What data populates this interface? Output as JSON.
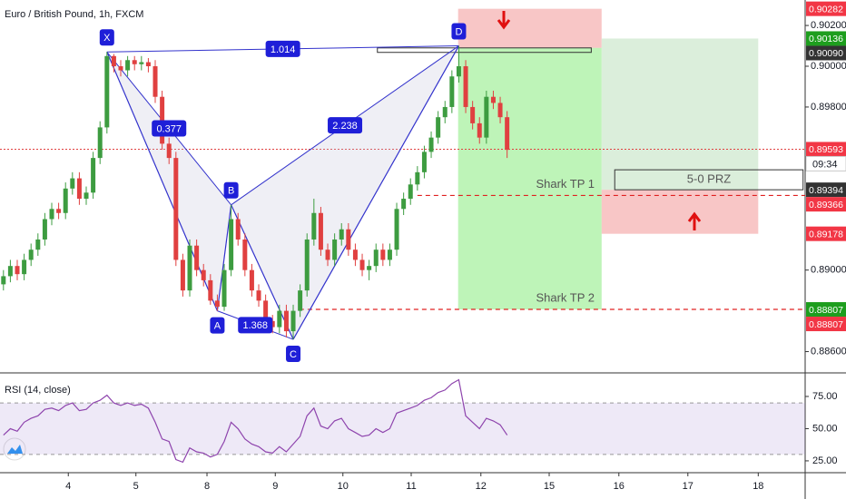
{
  "chart_data": {
    "type": "candlestick",
    "title": "Euro / British Pound, 1h, FXCM",
    "up_color": "#3d9c40",
    "down_color": "#e04040",
    "grid": false,
    "xlim": [
      -0.5,
      116.2
    ],
    "xticks": [
      {
        "value": 9.4,
        "label": "4"
      },
      {
        "value": 19.2,
        "label": "5"
      },
      {
        "value": 29.5,
        "label": "8"
      },
      {
        "value": 39.4,
        "label": "9"
      },
      {
        "value": 49.2,
        "label": "10"
      },
      {
        "value": 59.1,
        "label": "11"
      },
      {
        "value": 69.2,
        "label": "12"
      },
      {
        "value": 79.1,
        "label": "15"
      },
      {
        "value": 89.2,
        "label": "16"
      },
      {
        "value": 99.2,
        "label": "17"
      },
      {
        "value": 109.4,
        "label": "18"
      }
    ],
    "ylim": [
      0.885,
      0.90325
    ],
    "yticks": [
      {
        "value": 0.902,
        "label": "0.90200"
      },
      {
        "value": 0.9,
        "label": "0.90000"
      },
      {
        "value": 0.898,
        "label": "0.89800"
      },
      {
        "value": 0.89,
        "label": "0.89000"
      },
      {
        "value": 0.886,
        "label": "0.88600"
      }
    ],
    "candles": [
      [
        0.8893,
        0.89,
        0.889,
        0.8897
      ],
      [
        0.8897,
        0.8905,
        0.8894,
        0.8902
      ],
      [
        0.8902,
        0.8905,
        0.8895,
        0.8898
      ],
      [
        0.8898,
        0.8908,
        0.8895,
        0.8905
      ],
      [
        0.8905,
        0.8913,
        0.8902,
        0.891
      ],
      [
        0.891,
        0.8918,
        0.8907,
        0.8915
      ],
      [
        0.8915,
        0.8928,
        0.8912,
        0.8925
      ],
      [
        0.8925,
        0.8933,
        0.8922,
        0.893
      ],
      [
        0.893,
        0.8933,
        0.8925,
        0.8928
      ],
      [
        0.8928,
        0.8943,
        0.8925,
        0.894
      ],
      [
        0.894,
        0.8948,
        0.8937,
        0.8945
      ],
      [
        0.8945,
        0.8948,
        0.8932,
        0.8935
      ],
      [
        0.8935,
        0.8941,
        0.8932,
        0.8938
      ],
      [
        0.8938,
        0.8958,
        0.8935,
        0.8955
      ],
      [
        0.8955,
        0.8973,
        0.8952,
        0.897
      ],
      [
        0.897,
        0.9007,
        0.8967,
        0.9005
      ],
      [
        0.9005,
        0.9006,
        0.8997,
        0.9
      ],
      [
        0.9,
        0.9003,
        0.8995,
        0.8998
      ],
      [
        0.8998,
        0.9005,
        0.8995,
        0.9003
      ],
      [
        0.9003,
        0.9005,
        0.8998,
        0.9001
      ],
      [
        0.9001,
        0.9005,
        0.8998,
        0.9002
      ],
      [
        0.9002,
        0.9004,
        0.8997,
        0.9
      ],
      [
        0.9,
        0.9003,
        0.8982,
        0.8985
      ],
      [
        0.8985,
        0.8988,
        0.8959,
        0.8962
      ],
      [
        0.8962,
        0.8965,
        0.8952,
        0.8955
      ],
      [
        0.8955,
        0.8958,
        0.8902,
        0.8905
      ],
      [
        0.8905,
        0.8908,
        0.8887,
        0.889
      ],
      [
        0.889,
        0.8915,
        0.8887,
        0.8912
      ],
      [
        0.8912,
        0.8915,
        0.8897,
        0.89
      ],
      [
        0.89,
        0.8903,
        0.8892,
        0.8895
      ],
      [
        0.8895,
        0.8898,
        0.8883,
        0.8885
      ],
      [
        0.8885,
        0.8888,
        0.888,
        0.8882
      ],
      [
        0.8882,
        0.8903,
        0.888,
        0.89
      ],
      [
        0.89,
        0.8932,
        0.8897,
        0.8925
      ],
      [
        0.8925,
        0.8928,
        0.8912,
        0.8915
      ],
      [
        0.8915,
        0.8918,
        0.8897,
        0.89
      ],
      [
        0.89,
        0.8903,
        0.8887,
        0.889
      ],
      [
        0.889,
        0.8893,
        0.8882,
        0.8885
      ],
      [
        0.8885,
        0.8888,
        0.8872,
        0.8875
      ],
      [
        0.8875,
        0.8878,
        0.8869,
        0.8872
      ],
      [
        0.8872,
        0.8883,
        0.8869,
        0.888
      ],
      [
        0.888,
        0.8883,
        0.8867,
        0.887
      ],
      [
        0.887,
        0.8883,
        0.8866,
        0.888
      ],
      [
        0.888,
        0.8893,
        0.8877,
        0.889
      ],
      [
        0.889,
        0.8918,
        0.8887,
        0.8915
      ],
      [
        0.8915,
        0.8935,
        0.8912,
        0.8928
      ],
      [
        0.8928,
        0.8931,
        0.8907,
        0.891
      ],
      [
        0.891,
        0.8913,
        0.8902,
        0.8905
      ],
      [
        0.8905,
        0.8918,
        0.8902,
        0.8915
      ],
      [
        0.8915,
        0.8923,
        0.8912,
        0.892
      ],
      [
        0.892,
        0.8923,
        0.8907,
        0.891
      ],
      [
        0.891,
        0.8913,
        0.8902,
        0.8905
      ],
      [
        0.8905,
        0.8908,
        0.8897,
        0.89
      ],
      [
        0.89,
        0.8905,
        0.8895,
        0.8902
      ],
      [
        0.8902,
        0.8913,
        0.8899,
        0.891
      ],
      [
        0.891,
        0.8913,
        0.8902,
        0.8905
      ],
      [
        0.8905,
        0.8913,
        0.8902,
        0.891
      ],
      [
        0.891,
        0.8933,
        0.8907,
        0.893
      ],
      [
        0.893,
        0.8938,
        0.8927,
        0.8935
      ],
      [
        0.8935,
        0.8945,
        0.8932,
        0.8942
      ],
      [
        0.8942,
        0.8951,
        0.8939,
        0.8948
      ],
      [
        0.8948,
        0.8961,
        0.8945,
        0.8958
      ],
      [
        0.8958,
        0.8968,
        0.8955,
        0.8965
      ],
      [
        0.8965,
        0.8978,
        0.8962,
        0.8975
      ],
      [
        0.8975,
        0.8983,
        0.8972,
        0.898
      ],
      [
        0.898,
        0.8998,
        0.8977,
        0.8995
      ],
      [
        0.8995,
        0.901,
        0.8992,
        0.9
      ],
      [
        0.9,
        0.9003,
        0.8977,
        0.898
      ],
      [
        0.898,
        0.8983,
        0.8969,
        0.8972
      ],
      [
        0.8972,
        0.8975,
        0.8962,
        0.8965
      ],
      [
        0.8965,
        0.8988,
        0.8962,
        0.8985
      ],
      [
        0.8985,
        0.8988,
        0.8979,
        0.8982
      ],
      [
        0.8982,
        0.8985,
        0.8972,
        0.8975
      ],
      [
        0.8975,
        0.8978,
        0.8955,
        0.8959
      ]
    ],
    "pattern": {
      "points": [
        {
          "label": "X",
          "x": 15,
          "price": 0.9007
        },
        {
          "label": "A",
          "x": 31,
          "price": 0.888
        },
        {
          "label": "B",
          "x": 33,
          "price": 0.8932
        },
        {
          "label": "C",
          "x": 42,
          "price": 0.8866
        },
        {
          "label": "D",
          "x": 66,
          "price": 0.901
        }
      ],
      "ratios": [
        "1.014",
        "0.377",
        "2.238",
        "1.368"
      ]
    },
    "zones": [
      {
        "x": [
          65.9,
          86.7
        ],
        "price": [
          0.90282,
          0.9009
        ],
        "color": "#f6b3b3"
      },
      {
        "x": [
          65.9,
          86.7
        ],
        "price": [
          0.9009,
          0.88807
        ],
        "color": "#a8f0a0"
      },
      {
        "x": [
          86.7,
          109.4
        ],
        "price": [
          0.90136,
          0.89394
        ],
        "color": "#cfe8cf"
      },
      {
        "x": [
          86.7,
          109.4
        ],
        "price": [
          0.89394,
          0.89178
        ],
        "color": "#f6b3b3"
      }
    ],
    "outlines": [
      {
        "x": [
          54.2,
          85.2
        ],
        "price": [
          0.9009,
          0.90068
        ]
      },
      {
        "x": [
          88.6,
          115.9
        ],
        "price": [
          0.89492,
          0.89394
        ],
        "label": "5-0 PRZ"
      }
    ],
    "levels": [
      {
        "name": "Shark TP 1",
        "price": 0.89366,
        "x_start": 60
      },
      {
        "name": "Shark TP 2",
        "price": 0.88807,
        "x_start": 42.9
      }
    ],
    "price_labels": [
      {
        "value": 0.90282,
        "label": "0.90282",
        "color": "#f23645"
      },
      {
        "value": 0.90136,
        "label": "0.90136",
        "color": "#1e9e1e"
      },
      {
        "value": 0.9009,
        "label": "0.90090",
        "color": "#333333"
      },
      {
        "value": 0.89593,
        "label": "0.89593",
        "color": "#f23645"
      },
      {
        "value": 0.89394,
        "label": "0.89394",
        "color": "#333333"
      },
      {
        "value": 0.89366,
        "label": "0.89366",
        "color": "#f23645"
      },
      {
        "value": 0.89178,
        "label": "0.89178",
        "color": "#f23645"
      },
      {
        "value": 0.88807,
        "label": "0.88807",
        "color": "#1e9e1e"
      },
      {
        "value": 0.88807,
        "label": "0.88807",
        "color": "#f23645"
      }
    ],
    "current_price_label": 3,
    "countdown": "09:34",
    "rsi": {
      "title": "RSI (14, close)",
      "color": "#8e44ad",
      "ylim": [
        16.5,
        92.6
      ],
      "yticks": [
        {
          "value": 75,
          "label": "75.00"
        },
        {
          "value": 50,
          "label": "50.00"
        },
        {
          "value": 25,
          "label": "25.00"
        }
      ],
      "band": [
        30,
        70
      ],
      "values": [
        45,
        50,
        48,
        55,
        58,
        60,
        65,
        66,
        64,
        68,
        70,
        64,
        65,
        70,
        72,
        76,
        70,
        68,
        70,
        68,
        69,
        66,
        55,
        42,
        40,
        26,
        24,
        35,
        32,
        31,
        28,
        30,
        40,
        55,
        50,
        42,
        38,
        36,
        32,
        31,
        36,
        32,
        38,
        44,
        60,
        66,
        52,
        50,
        56,
        58,
        50,
        47,
        44,
        45,
        50,
        47,
        50,
        62,
        64,
        66,
        68,
        72,
        74,
        78,
        80,
        85,
        88,
        60,
        55,
        50,
        58,
        56,
        53,
        45
      ]
    }
  }
}
